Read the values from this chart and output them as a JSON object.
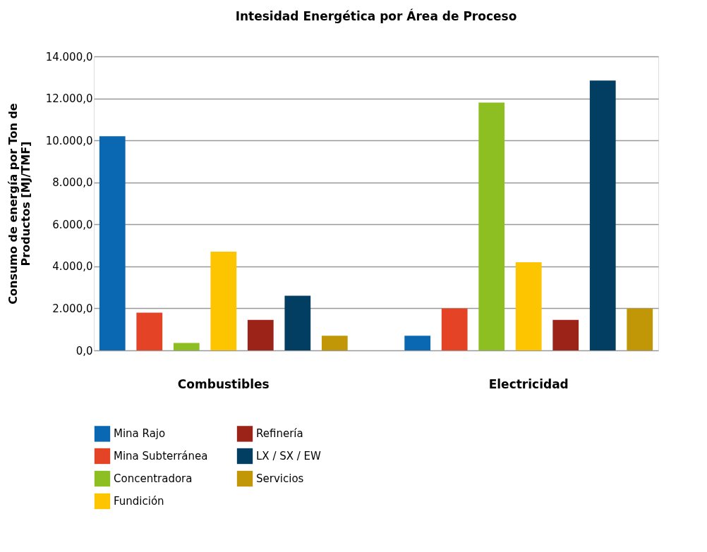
{
  "chart_data": {
    "type": "bar",
    "title": "Intesidad Energética por Área de Proceso",
    "ylabel": "Consumo de energía por Ton de\nProductos [MJ/TMF]",
    "categories": [
      "Combustibles",
      "Electricidad"
    ],
    "series": [
      {
        "name": "Mina Rajo",
        "color": "#0a67b2",
        "values": [
          10200,
          700
        ]
      },
      {
        "name": "Mina Subterránea",
        "color": "#e44425",
        "values": [
          1800,
          2000
        ]
      },
      {
        "name": "Concentradora",
        "color": "#8dbe22",
        "values": [
          350,
          11800
        ]
      },
      {
        "name": "Fundición",
        "color": "#fdc500",
        "values": [
          4700,
          4200
        ]
      },
      {
        "name": "Refinería",
        "color": "#9b2317",
        "values": [
          1450,
          1450
        ]
      },
      {
        "name": "LX / SX / EW",
        "color": "#023e62",
        "values": [
          2600,
          12850
        ]
      },
      {
        "name": "Servicios",
        "color": "#c19707",
        "values": [
          700,
          2000
        ]
      }
    ],
    "ylim": [
      0,
      14000
    ],
    "yticks": [
      {
        "value": 0,
        "label": "0,0"
      },
      {
        "value": 2000,
        "label": "2.000,0"
      },
      {
        "value": 4000,
        "label": "4.000,0"
      },
      {
        "value": 6000,
        "label": "6.000,0"
      },
      {
        "value": 8000,
        "label": "8.000,0"
      },
      {
        "value": 10000,
        "label": "10.000,0"
      },
      {
        "value": 12000,
        "label": "12.000,0"
      },
      {
        "value": 14000,
        "label": "14.000,0"
      }
    ],
    "grid": "y",
    "legend": "bottom"
  }
}
